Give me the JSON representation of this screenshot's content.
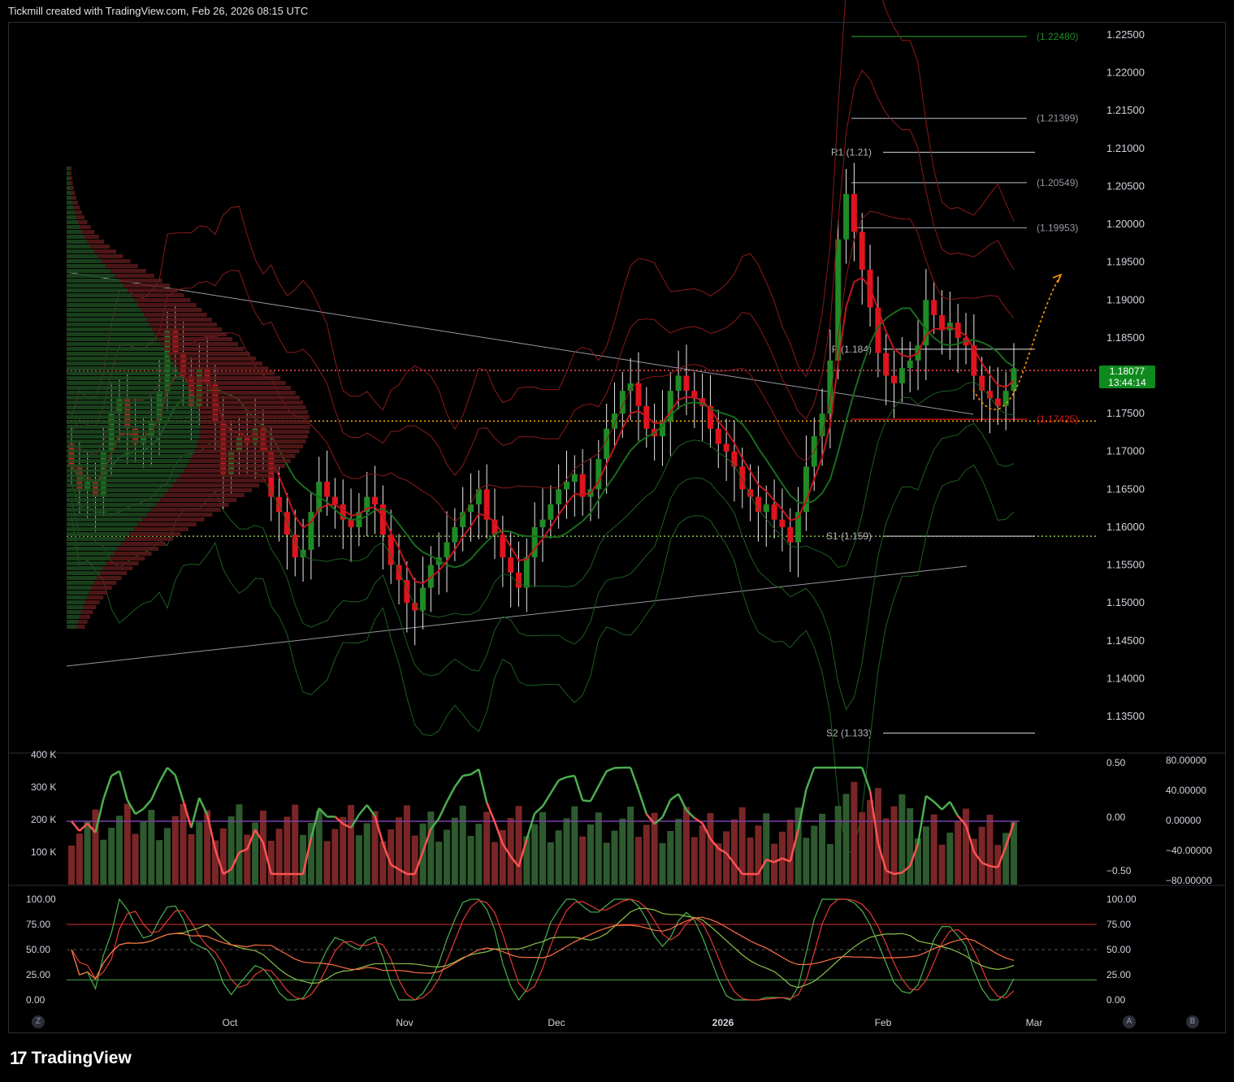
{
  "header": {
    "title": "Tickmill created with TradingView.com, Feb 26, 2026 08:15 UTC"
  },
  "footer": {
    "brand": "TradingView"
  },
  "price_tag": {
    "price": "1.18077",
    "countdown": "13:44:14"
  },
  "corner_buttons": {
    "left": "Z",
    "right_a": "A",
    "right_b": "B"
  },
  "colors": {
    "up": "#1f8b24",
    "down": "#e0141e",
    "background": "#000000",
    "grid": "#2a2e39",
    "accent_orange": "#ff9800"
  },
  "chart_data": [
    {
      "type": "candlestick",
      "panel": "price",
      "y_axis": {
        "ticks": [
          "1.22500",
          "1.22000",
          "1.21500",
          "1.21000",
          "1.20500",
          "1.20000",
          "1.19500",
          "1.19000",
          "1.18500",
          "1.18000",
          "1.17500",
          "1.17000",
          "1.16500",
          "1.16000",
          "1.15500",
          "1.15000",
          "1.14500",
          "1.14000",
          "1.13500"
        ],
        "range": [
          1.13,
          1.227
        ]
      },
      "x_axis": {
        "ticks": [
          "Oct",
          "Nov",
          "Dec",
          "2026",
          "Feb",
          "Mar"
        ]
      },
      "last_price": 1.18077,
      "levels": [
        {
          "label": "(1.22480)",
          "value": 1.2248,
          "color": "#1f8b24"
        },
        {
          "label": "(1.21399)",
          "value": 1.21399,
          "color": "#9598a1"
        },
        {
          "label": "R1 (1.21)",
          "value": 1.2095,
          "color": "#b0b3b8"
        },
        {
          "label": "(1.20549)",
          "value": 1.20549,
          "color": "#9598a1"
        },
        {
          "label": "(1.19953)",
          "value": 1.19953,
          "color": "#9598a1"
        },
        {
          "label": "P (1.184)",
          "value": 1.1835,
          "color": "#b0b3b8"
        },
        {
          "label": "(1.17425)",
          "value": 1.17425,
          "color": "#e0141e"
        },
        {
          "label": "S1 (1.159)",
          "value": 1.1588,
          "color": "#b0b3b8"
        },
        {
          "label": "S2 (1.133)",
          "value": 1.1328,
          "color": "#b0b3b8"
        }
      ],
      "dotted_lines": [
        {
          "value": 1.1807,
          "color": "#ff5252"
        },
        {
          "value": 1.174,
          "color": "#ffb300"
        },
        {
          "value": 1.1588,
          "color": "#8bc34a"
        }
      ],
      "closes": [
        1.168,
        1.165,
        1.166,
        1.164,
        1.17,
        1.175,
        1.177,
        1.173,
        1.171,
        1.172,
        1.174,
        1.178,
        1.186,
        1.183,
        1.18,
        1.176,
        1.181,
        1.179,
        1.174,
        1.167,
        1.17,
        1.172,
        1.171,
        1.173,
        1.17,
        1.164,
        1.162,
        1.159,
        1.156,
        1.157,
        1.162,
        1.166,
        1.164,
        1.163,
        1.161,
        1.16,
        1.162,
        1.164,
        1.163,
        1.159,
        1.155,
        1.153,
        1.15,
        1.149,
        1.152,
        1.155,
        1.156,
        1.158,
        1.16,
        1.162,
        1.163,
        1.165,
        1.161,
        1.159,
        1.156,
        1.154,
        1.152,
        1.156,
        1.16,
        1.161,
        1.163,
        1.165,
        1.166,
        1.167,
        1.164,
        1.165,
        1.169,
        1.173,
        1.175,
        1.178,
        1.179,
        1.176,
        1.173,
        1.172,
        1.174,
        1.178,
        1.18,
        1.178,
        1.177,
        1.176,
        1.173,
        1.171,
        1.17,
        1.168,
        1.165,
        1.164,
        1.162,
        1.163,
        1.161,
        1.16,
        1.158,
        1.162,
        1.168,
        1.172,
        1.175,
        1.182,
        1.198,
        1.204,
        1.199,
        1.194,
        1.189,
        1.183,
        1.18,
        1.179,
        1.181,
        1.182,
        1.184,
        1.19,
        1.188,
        1.186,
        1.187,
        1.185,
        1.184,
        1.18,
        1.178,
        1.177,
        1.176,
        1.178,
        1.181
      ]
    },
    {
      "type": "bar+line",
      "panel": "volume_oscillator",
      "left_axis": [
        "400 K",
        "300 K",
        "200 K",
        "100 K"
      ],
      "right_axis_1": [
        "0.50",
        "0.00",
        "−0.50"
      ],
      "right_axis_2": [
        "80.00000",
        "40.00000",
        "0.00000",
        "−40.00000",
        "−80.00000"
      ]
    },
    {
      "type": "line",
      "panel": "stochastic",
      "left_axis": [
        "100.00",
        "75.00",
        "50.00",
        "25.00",
        "0.00"
      ],
      "right_axis": [
        "100.00",
        "75.00",
        "50.00",
        "25.00",
        "0.00"
      ],
      "levels": [
        75,
        50,
        20
      ]
    }
  ]
}
